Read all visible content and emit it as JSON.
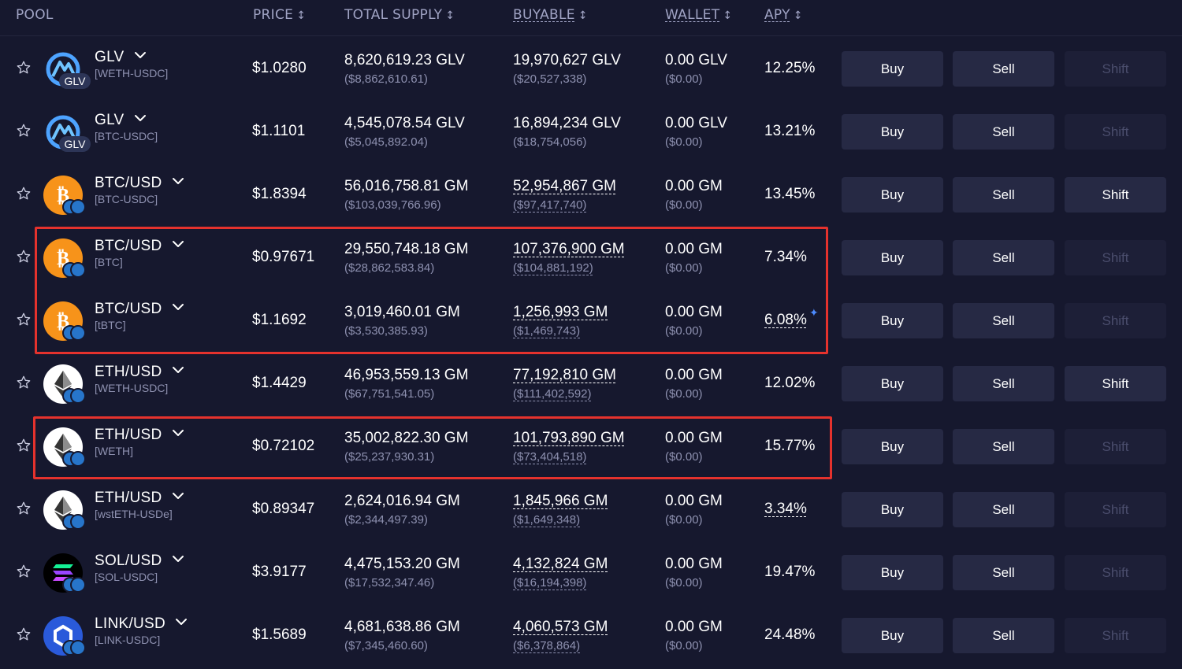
{
  "header": {
    "pool": "POOL",
    "price": "PRICE",
    "total_supply": "TOTAL SUPPLY",
    "buyable": "BUYABLE",
    "wallet": "WALLET",
    "apy": "APY",
    "sort_icon": "↕"
  },
  "colors": {
    "background": "#16182e",
    "button": "#262944",
    "button_disabled": "#1d1f37",
    "highlight": "#e5322d",
    "muted_text": "#8e91b0"
  },
  "rows": [
    {
      "name": "GLV",
      "sub": "[WETH-USDC]",
      "icon": "glv-icon",
      "badge": "GLV",
      "price": "$1.0280",
      "supply": "8,620,619.23 GLV",
      "supply_usd": "($8,862,610.61)",
      "buyable": "19,970,627 GLV",
      "buyable_usd": "($20,527,338)",
      "wallet": "0.00 GLV",
      "wallet_usd": "($0.00)",
      "apy": "12.25%",
      "buy": "Buy",
      "sell": "Sell",
      "shift": "Shift",
      "shift_enabled": false,
      "buyable_dashed": false,
      "apy_dashed": false
    },
    {
      "name": "GLV",
      "sub": "[BTC-USDC]",
      "icon": "glv-icon",
      "badge": "GLV",
      "price": "$1.1101",
      "supply": "4,545,078.54 GLV",
      "supply_usd": "($5,045,892.04)",
      "buyable": "16,894,234 GLV",
      "buyable_usd": "($18,754,056)",
      "wallet": "0.00 GLV",
      "wallet_usd": "($0.00)",
      "apy": "13.21%",
      "buy": "Buy",
      "sell": "Sell",
      "shift": "Shift",
      "shift_enabled": false,
      "buyable_dashed": false,
      "apy_dashed": false
    },
    {
      "name": "BTC/USD",
      "sub": "[BTC-USDC]",
      "icon": "btc-icon",
      "price": "$1.8394",
      "supply": "56,016,758.81 GM",
      "supply_usd": "($103,039,766.96)",
      "buyable": "52,954,867 GM",
      "buyable_usd": "($97,417,740)",
      "wallet": "0.00 GM",
      "wallet_usd": "($0.00)",
      "apy": "13.45%",
      "buy": "Buy",
      "sell": "Sell",
      "shift": "Shift",
      "shift_enabled": true,
      "buyable_dashed": true,
      "apy_dashed": false
    },
    {
      "name": "BTC/USD",
      "sub": "[BTC]",
      "icon": "btc-icon",
      "price": "$0.97671",
      "supply": "29,550,748.18 GM",
      "supply_usd": "($28,862,583.84)",
      "buyable": "107,376,900 GM",
      "buyable_usd": "($104,881,192)",
      "wallet": "0.00 GM",
      "wallet_usd": "($0.00)",
      "apy": "7.34%",
      "buy": "Buy",
      "sell": "Sell",
      "shift": "Shift",
      "shift_enabled": false,
      "buyable_dashed": true,
      "apy_dashed": false
    },
    {
      "name": "BTC/USD",
      "sub": "[tBTC]",
      "icon": "btc-icon",
      "price": "$1.1692",
      "supply": "3,019,460.01 GM",
      "supply_usd": "($3,530,385.93)",
      "buyable": "1,256,993 GM",
      "buyable_usd": "($1,469,743)",
      "wallet": "0.00 GM",
      "wallet_usd": "($0.00)",
      "apy": "6.08%",
      "buy": "Buy",
      "sell": "Sell",
      "shift": "Shift",
      "shift_enabled": false,
      "buyable_dashed": true,
      "apy_dashed": true,
      "apy_spark": "✦"
    },
    {
      "name": "ETH/USD",
      "sub": "[WETH-USDC]",
      "icon": "eth-icon",
      "price": "$1.4429",
      "supply": "46,953,559.13 GM",
      "supply_usd": "($67,751,541.05)",
      "buyable": "77,192,810 GM",
      "buyable_usd": "($111,402,592)",
      "wallet": "0.00 GM",
      "wallet_usd": "($0.00)",
      "apy": "12.02%",
      "buy": "Buy",
      "sell": "Sell",
      "shift": "Shift",
      "shift_enabled": true,
      "buyable_dashed": true,
      "apy_dashed": false
    },
    {
      "name": "ETH/USD",
      "sub": "[WETH]",
      "icon": "eth-icon",
      "price": "$0.72102",
      "supply": "35,002,822.30 GM",
      "supply_usd": "($25,237,930.31)",
      "buyable": "101,793,890 GM",
      "buyable_usd": "($73,404,518)",
      "wallet": "0.00 GM",
      "wallet_usd": "($0.00)",
      "apy": "15.77%",
      "buy": "Buy",
      "sell": "Sell",
      "shift": "Shift",
      "shift_enabled": false,
      "buyable_dashed": true,
      "apy_dashed": false
    },
    {
      "name": "ETH/USD",
      "sub": "[wstETH-USDe]",
      "icon": "eth-icon",
      "price": "$0.89347",
      "supply": "2,624,016.94 GM",
      "supply_usd": "($2,344,497.39)",
      "buyable": "1,845,966 GM",
      "buyable_usd": "($1,649,348)",
      "wallet": "0.00 GM",
      "wallet_usd": "($0.00)",
      "apy": "3.34%",
      "buy": "Buy",
      "sell": "Sell",
      "shift": "Shift",
      "shift_enabled": false,
      "buyable_dashed": true,
      "apy_dashed": true
    },
    {
      "name": "SOL/USD",
      "sub": "[SOL-USDC]",
      "icon": "sol-icon",
      "price": "$3.9177",
      "supply": "4,475,153.20 GM",
      "supply_usd": "($17,532,347.46)",
      "buyable": "4,132,824 GM",
      "buyable_usd": "($16,194,398)",
      "wallet": "0.00 GM",
      "wallet_usd": "($0.00)",
      "apy": "19.47%",
      "buy": "Buy",
      "sell": "Sell",
      "shift": "Shift",
      "shift_enabled": false,
      "buyable_dashed": true,
      "apy_dashed": false
    },
    {
      "name": "LINK/USD",
      "sub": "[LINK-USDC]",
      "icon": "link-icon",
      "price": "$1.5689",
      "supply": "4,681,638.86 GM",
      "supply_usd": "($7,345,460.60)",
      "buyable": "4,060,573 GM",
      "buyable_usd": "($6,378,864)",
      "wallet": "0.00 GM",
      "wallet_usd": "($0.00)",
      "apy": "24.48%",
      "buy": "Buy",
      "sell": "Sell",
      "shift": "Shift",
      "shift_enabled": false,
      "buyable_dashed": true,
      "apy_dashed": false
    }
  ]
}
